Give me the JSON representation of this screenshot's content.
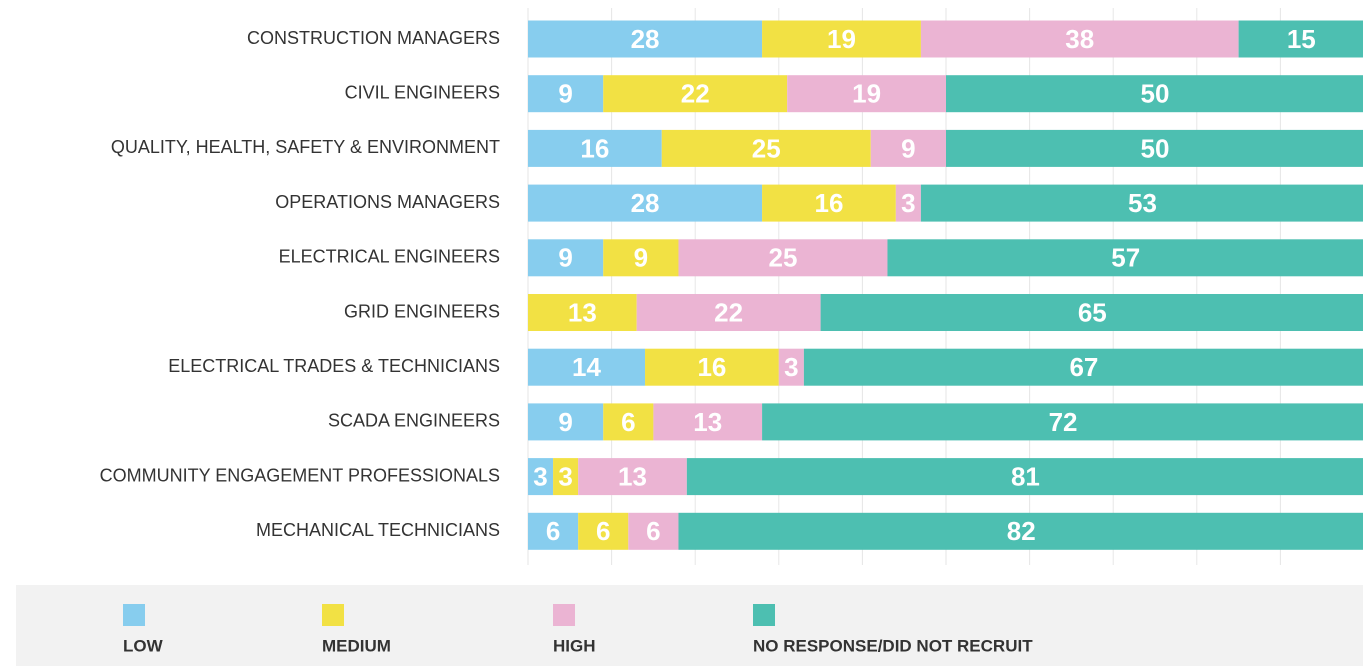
{
  "chart_data": {
    "type": "stacked-barh",
    "categories": [
      "CONSTRUCTION MANAGERS",
      "CIVIL ENGINEERS",
      "QUALITY, HEALTH, SAFETY & ENVIRONMENT",
      "OPERATIONS MANAGERS",
      "ELECTRICAL ENGINEERS",
      "GRID ENGINEERS",
      "ELECTRICAL TRADES & TECHNICIANS",
      "SCADA ENGINEERS",
      "COMMUNITY ENGAGEMENT PROFESSIONALS",
      "MECHANICAL TECHNICIANS"
    ],
    "series": [
      {
        "name": "LOW",
        "color": "#87cdee",
        "values": [
          28,
          9,
          16,
          28,
          9,
          null,
          14,
          9,
          3,
          6
        ]
      },
      {
        "name": "MEDIUM",
        "color": "#f2e144",
        "values": [
          19,
          22,
          25,
          16,
          9,
          13,
          16,
          6,
          3,
          6
        ]
      },
      {
        "name": "HIGH",
        "color": "#ebb4d3",
        "values": [
          38,
          19,
          9,
          3,
          25,
          22,
          3,
          13,
          13,
          6
        ]
      },
      {
        "name": "NO RESPONSE/DID NOT RECRUIT",
        "color": "#4dbfb1",
        "values": [
          15,
          50,
          50,
          53,
          57,
          65,
          67,
          72,
          81,
          82
        ]
      }
    ],
    "xlim": [
      0,
      100
    ],
    "xticks": [
      0,
      10,
      20,
      30,
      40,
      50,
      60,
      70,
      80,
      90,
      100
    ],
    "grid": true,
    "legend": "bottom"
  }
}
